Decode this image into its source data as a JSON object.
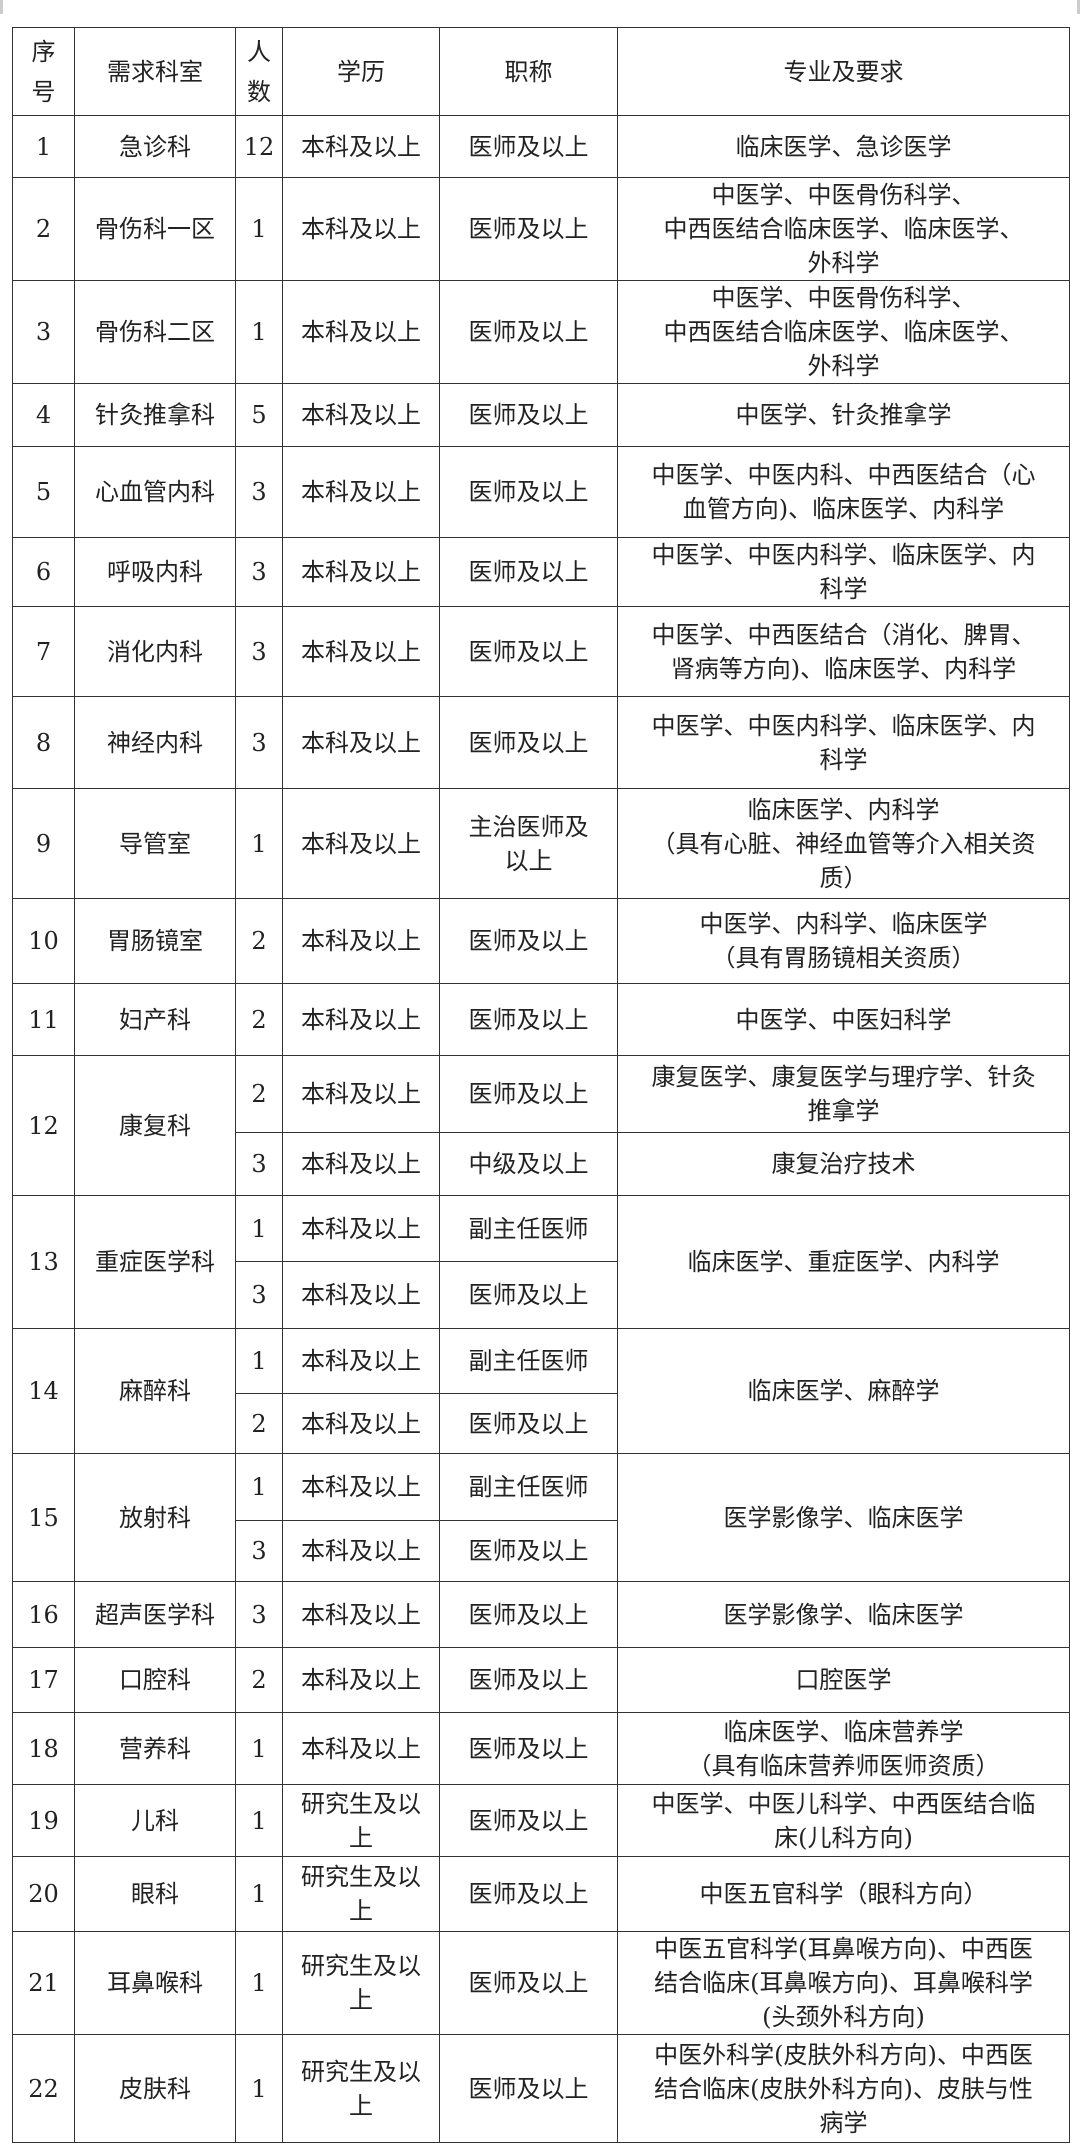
{
  "header": {
    "no": "序\n号",
    "dept": "需求科室",
    "count": "人\n数",
    "edu": "学历",
    "title": "职称",
    "spec": "专业及要求"
  },
  "rows": [
    {
      "no": "1",
      "dept": "急诊科",
      "positions": [
        {
          "count": "12",
          "edu": "本科及以上",
          "title": "医师及以上"
        }
      ],
      "spec": "临床医学、急诊医学"
    },
    {
      "no": "2",
      "dept": "骨伤科一区",
      "positions": [
        {
          "count": "1",
          "edu": "本科及以上",
          "title": "医师及以上"
        }
      ],
      "spec": "中医学、中医骨伤科学、\n中西医结合临床医学、临床医学、\n外科学"
    },
    {
      "no": "3",
      "dept": "骨伤科二区",
      "positions": [
        {
          "count": "1",
          "edu": "本科及以上",
          "title": "医师及以上"
        }
      ],
      "spec": "中医学、中医骨伤科学、\n中西医结合临床医学、临床医学、\n外科学"
    },
    {
      "no": "4",
      "dept": "针灸推拿科",
      "positions": [
        {
          "count": "5",
          "edu": "本科及以上",
          "title": "医师及以上"
        }
      ],
      "spec": "中医学、针灸推拿学"
    },
    {
      "no": "5",
      "dept": "心血管内科",
      "positions": [
        {
          "count": "3",
          "edu": "本科及以上",
          "title": "医师及以上"
        }
      ],
      "spec": "中医学、中医内科、中西医结合（心\n血管方向)、临床医学、内科学"
    },
    {
      "no": "6",
      "dept": "呼吸内科",
      "positions": [
        {
          "count": "3",
          "edu": "本科及以上",
          "title": "医师及以上"
        }
      ],
      "spec": "中医学、中医内科学、临床医学、内\n科学"
    },
    {
      "no": "7",
      "dept": "消化内科",
      "positions": [
        {
          "count": "3",
          "edu": "本科及以上",
          "title": "医师及以上"
        }
      ],
      "spec": "中医学、中西医结合（消化、脾胃、\n肾病等方向)、临床医学、内科学"
    },
    {
      "no": "8",
      "dept": "神经内科",
      "positions": [
        {
          "count": "3",
          "edu": "本科及以上",
          "title": "医师及以上"
        }
      ],
      "spec": "中医学、中医内科学、临床医学、内\n科学"
    },
    {
      "no": "9",
      "dept": "导管室",
      "positions": [
        {
          "count": "1",
          "edu": "本科及以上",
          "title": "主治医师及\n以上"
        }
      ],
      "spec": "临床医学、内科学\n（具有心脏、神经血管等介入相关资\n质）"
    },
    {
      "no": "10",
      "dept": "胃肠镜室",
      "positions": [
        {
          "count": "2",
          "edu": "本科及以上",
          "title": "医师及以上"
        }
      ],
      "spec": "中医学、内科学、临床医学\n（具有胃肠镜相关资质）"
    },
    {
      "no": "11",
      "dept": "妇产科",
      "positions": [
        {
          "count": "2",
          "edu": "本科及以上",
          "title": "医师及以上"
        }
      ],
      "spec": "中医学、中医妇科学"
    },
    {
      "no": "12",
      "dept": "康复科",
      "positions": [
        {
          "count": "2",
          "edu": "本科及以上",
          "title": "医师及以上",
          "spec": "康复医学、康复医学与理疗学、针灸\n推拿学"
        },
        {
          "count": "3",
          "edu": "本科及以上",
          "title": "中级及以上",
          "spec": "康复治疗技术"
        }
      ]
    },
    {
      "no": "13",
      "dept": "重症医学科",
      "positions": [
        {
          "count": "1",
          "edu": "本科及以上",
          "title": "副主任医师"
        },
        {
          "count": "3",
          "edu": "本科及以上",
          "title": "医师及以上"
        }
      ],
      "spec": "临床医学、重症医学、内科学"
    },
    {
      "no": "14",
      "dept": "麻醉科",
      "positions": [
        {
          "count": "1",
          "edu": "本科及以上",
          "title": "副主任医师"
        },
        {
          "count": "2",
          "edu": "本科及以上",
          "title": "医师及以上"
        }
      ],
      "spec": "临床医学、麻醉学"
    },
    {
      "no": "15",
      "dept": "放射科",
      "positions": [
        {
          "count": "1",
          "edu": "本科及以上",
          "title": "副主任医师"
        },
        {
          "count": "3",
          "edu": "本科及以上",
          "title": "医师及以上"
        }
      ],
      "spec": "医学影像学、临床医学"
    },
    {
      "no": "16",
      "dept": "超声医学科",
      "positions": [
        {
          "count": "3",
          "edu": "本科及以上",
          "title": "医师及以上"
        }
      ],
      "spec": "医学影像学、临床医学"
    },
    {
      "no": "17",
      "dept": "口腔科",
      "positions": [
        {
          "count": "2",
          "edu": "本科及以上",
          "title": "医师及以上"
        }
      ],
      "spec": "口腔医学"
    },
    {
      "no": "18",
      "dept": "营养科",
      "positions": [
        {
          "count": "1",
          "edu": "本科及以上",
          "title": "医师及以上"
        }
      ],
      "spec": "临床医学、临床营养学\n（具有临床营养师医师资质）"
    },
    {
      "no": "19",
      "dept": "儿科",
      "positions": [
        {
          "count": "1",
          "edu": "研究生及以\n上",
          "title": "医师及以上"
        }
      ],
      "spec": "中医学、中医儿科学、中西医结合临\n床(儿科方向)"
    },
    {
      "no": "20",
      "dept": "眼科",
      "positions": [
        {
          "count": "1",
          "edu": "研究生及以\n上",
          "title": "医师及以上"
        }
      ],
      "spec": "中医五官科学（眼科方向）"
    },
    {
      "no": "21",
      "dept": "耳鼻喉科",
      "positions": [
        {
          "count": "1",
          "edu": "研究生及以\n上",
          "title": "医师及以上"
        }
      ],
      "spec": "中医五官科学(耳鼻喉方向)、中西医\n结合临床(耳鼻喉方向)、耳鼻喉科学\n(头颈外科方向)"
    },
    {
      "no": "22",
      "dept": "皮肤科",
      "positions": [
        {
          "count": "1",
          "edu": "研究生及以\n上",
          "title": "医师及以上"
        }
      ],
      "spec": "中医外科学(皮肤外科方向)、中西医\n结合临床(皮肤外科方向)、皮肤与性\n病学"
    }
  ]
}
